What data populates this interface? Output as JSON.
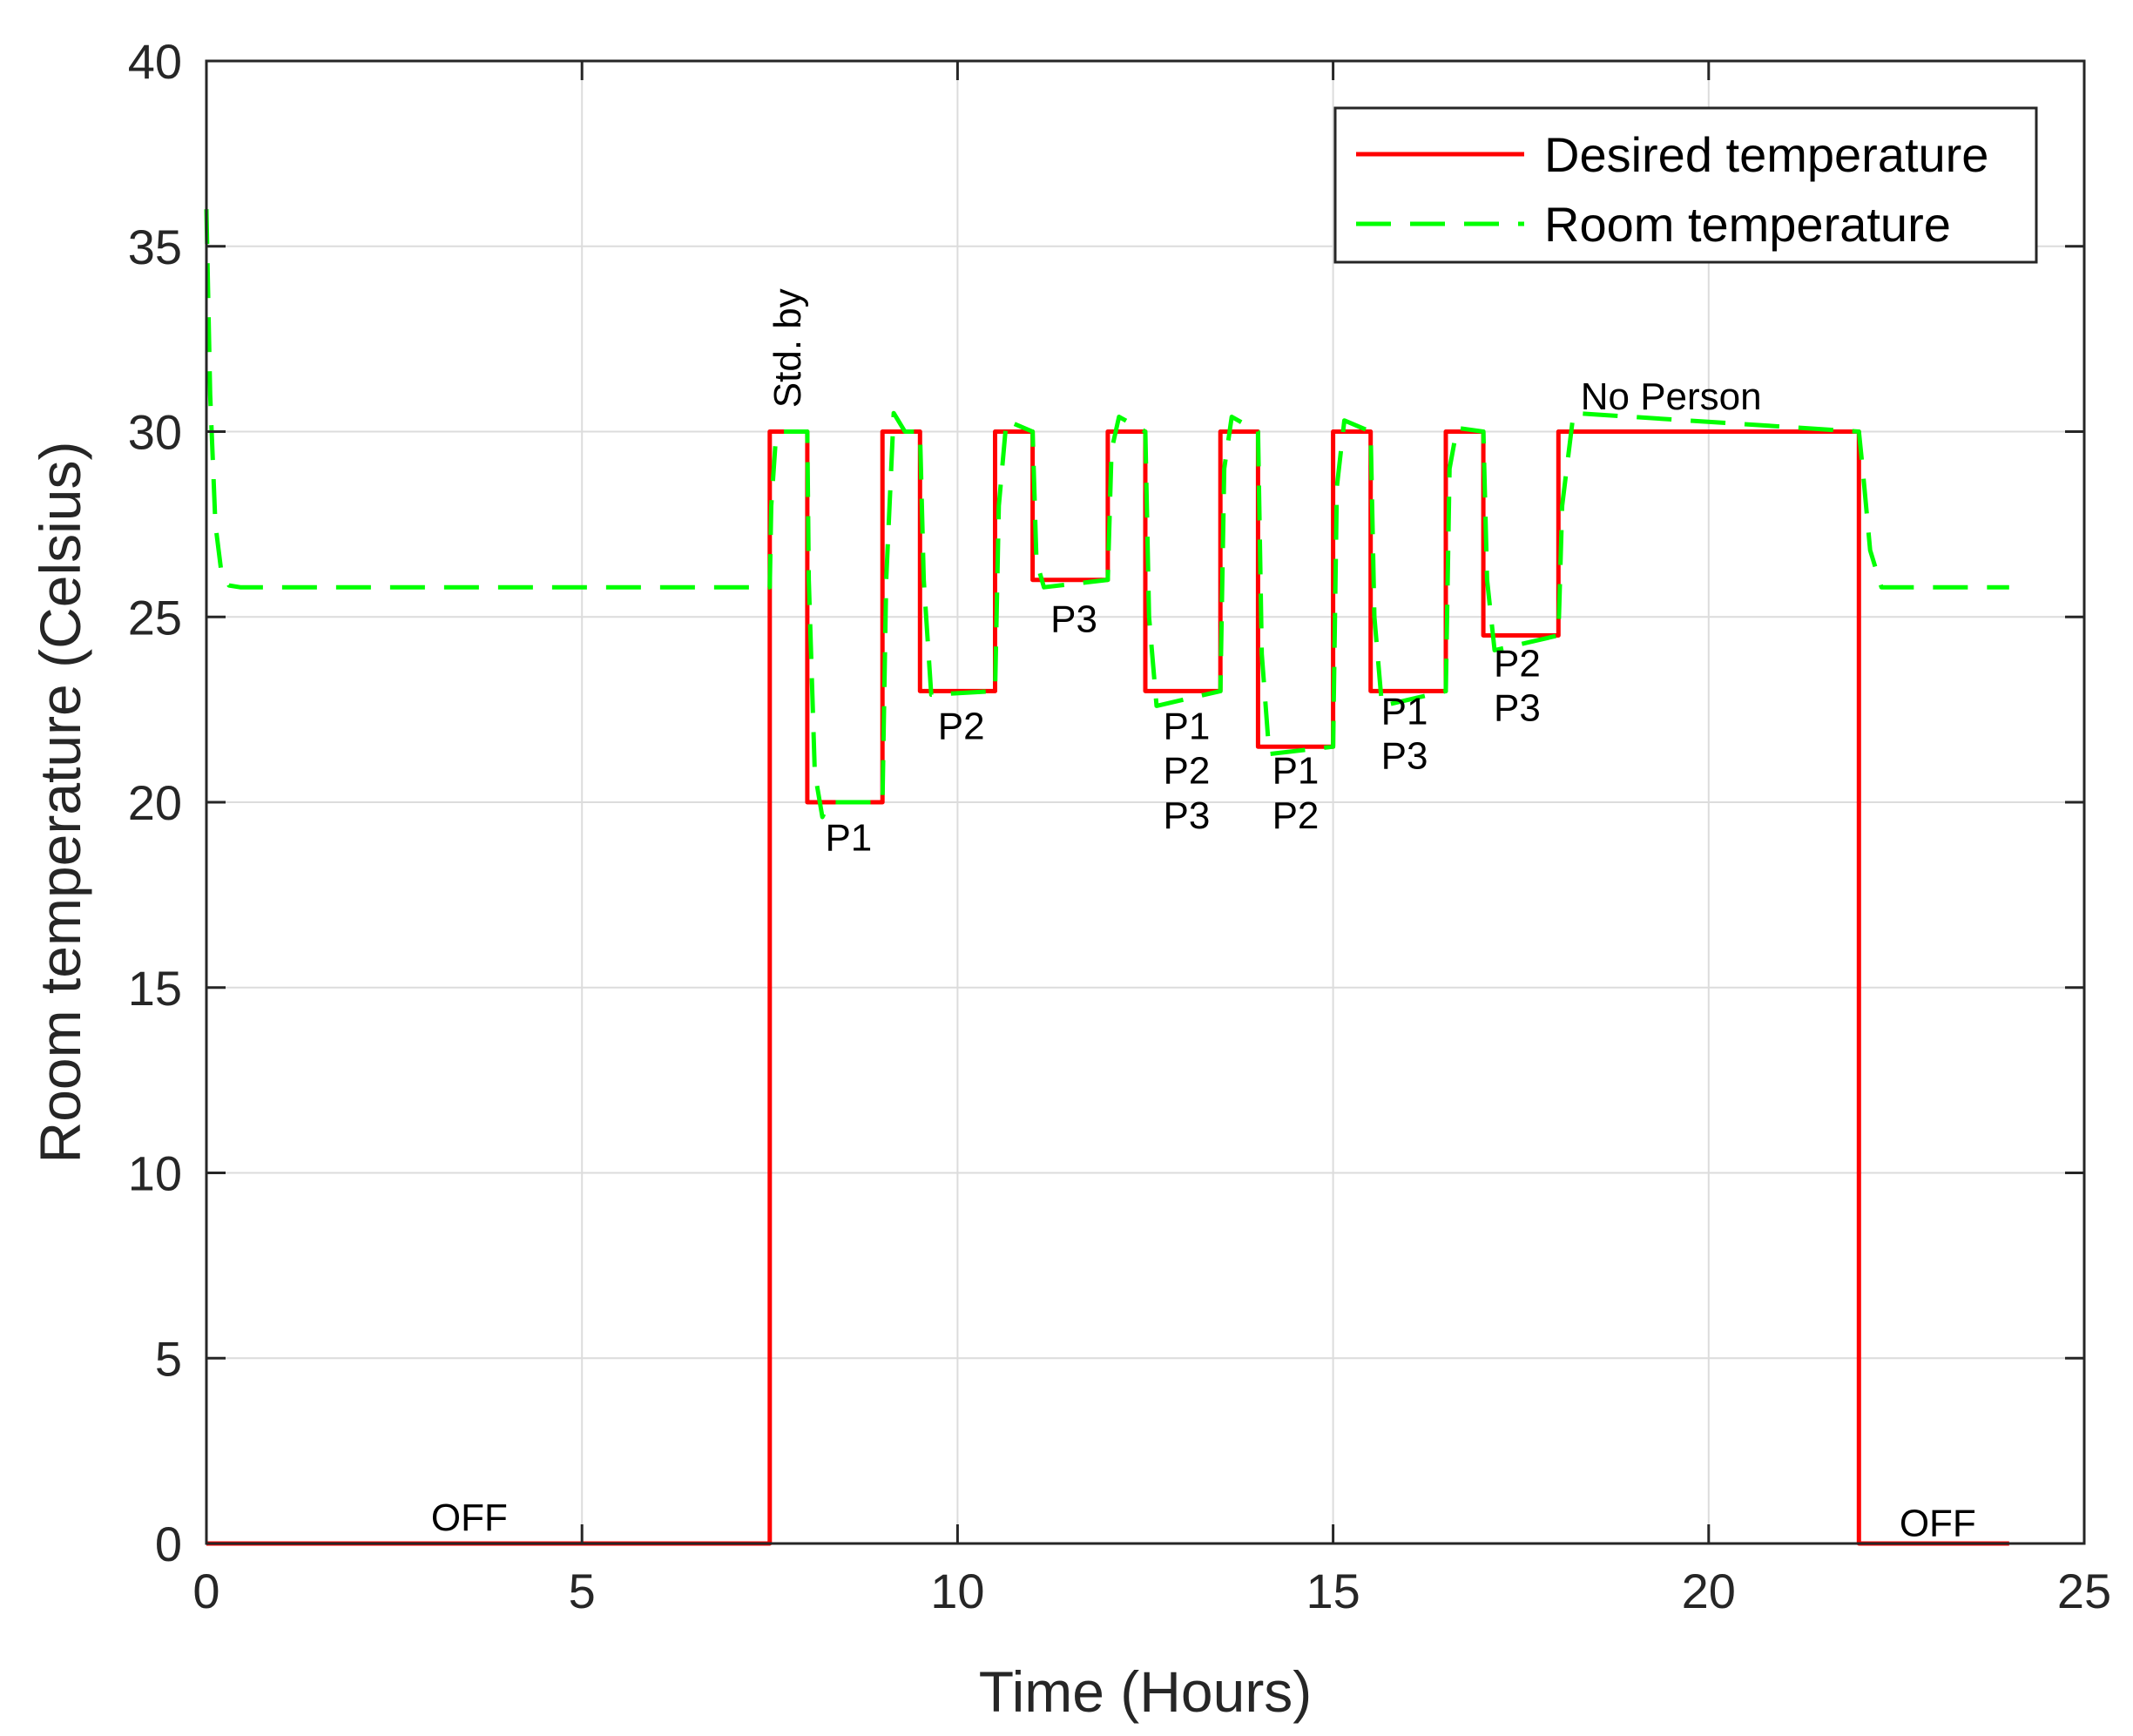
{
  "chart_data": {
    "type": "line",
    "xlabel": "Time (Hours)",
    "ylabel": "Room temperature (Celsius)",
    "xlim": [
      0,
      25
    ],
    "ylim": [
      0,
      40
    ],
    "xticks": [
      0,
      5,
      10,
      15,
      20,
      25
    ],
    "yticks": [
      0,
      5,
      10,
      15,
      20,
      25,
      30,
      35,
      40
    ],
    "grid": true,
    "legend_position": "top-right",
    "series": [
      {
        "name": "Desired temperature",
        "color": "#ff0000",
        "style": "solid",
        "x": [
          0,
          7.5,
          7.5,
          8,
          8,
          9,
          9,
          9.5,
          9.5,
          10.5,
          10.5,
          11,
          11,
          12,
          12,
          12.5,
          12.5,
          13.5,
          13.5,
          14,
          14,
          15,
          15,
          15.5,
          15.5,
          16.5,
          16.5,
          17,
          17,
          18,
          18,
          22,
          22,
          24
        ],
        "values": [
          0,
          0,
          30,
          30,
          20,
          20,
          30,
          30,
          23,
          23,
          30,
          30,
          26,
          26,
          30,
          30,
          23,
          23,
          30,
          30,
          21.5,
          21.5,
          30,
          30,
          23,
          23,
          30,
          30,
          24.5,
          24.5,
          30,
          30,
          0,
          0
        ]
      },
      {
        "name": "Room temperature",
        "color": "#00ff00",
        "style": "dashed",
        "x": [
          0,
          0.05,
          0.12,
          0.2,
          0.3,
          0.45,
          7.5,
          7.52,
          7.58,
          7.65,
          8,
          8.02,
          8.1,
          8.2,
          8.3,
          9,
          9.05,
          9.15,
          9.3,
          9.5,
          9.55,
          9.65,
          10.5,
          10.55,
          10.65,
          11,
          11.05,
          11.15,
          12,
          12.05,
          12.15,
          12.5,
          12.55,
          12.65,
          13.5,
          13.55,
          13.65,
          14,
          14.05,
          14.15,
          15,
          15.05,
          15.15,
          15.5,
          15.55,
          15.65,
          16.5,
          16.55,
          16.65,
          17,
          17.05,
          17.15,
          18,
          18.05,
          18.2,
          22,
          22.05,
          22.15,
          22.3,
          24
        ],
        "values": [
          36,
          31,
          27.5,
          26.2,
          25.85,
          25.8,
          25.8,
          28,
          29.8,
          30,
          30,
          26,
          20.8,
          19.6,
          20,
          20,
          26,
          30.5,
          30,
          30,
          26,
          22.9,
          23,
          28,
          30.3,
          30,
          26.5,
          25.8,
          26,
          29.5,
          30.4,
          30,
          25,
          22.6,
          23,
          29,
          30.4,
          30,
          24,
          21.3,
          21.5,
          28.5,
          30.3,
          30,
          25,
          22.6,
          23,
          29,
          30.1,
          30,
          26,
          24.1,
          24.5,
          28,
          30.5,
          30,
          29,
          26.8,
          25.8,
          25.8
        ]
      }
    ],
    "annotations": [
      {
        "text": "Std. by",
        "x": 7.7,
        "y": 30.5,
        "rotate": true
      },
      {
        "text": "P1",
        "x": 8.55,
        "y": 18.7
      },
      {
        "text": "P2",
        "x": 10.05,
        "y": 21.7
      },
      {
        "text": "P3",
        "x": 11.55,
        "y": 24.6
      },
      {
        "text": "P1",
        "x": 13.05,
        "y": 21.7
      },
      {
        "text": "P2",
        "x": 13.05,
        "y": 20.5
      },
      {
        "text": "P3",
        "x": 13.05,
        "y": 19.3
      },
      {
        "text": "P1",
        "x": 14.5,
        "y": 20.5
      },
      {
        "text": "P2",
        "x": 14.5,
        "y": 19.3
      },
      {
        "text": "P1",
        "x": 15.95,
        "y": 22.1
      },
      {
        "text": "P3",
        "x": 15.95,
        "y": 20.9
      },
      {
        "text": "P2",
        "x": 17.45,
        "y": 23.4
      },
      {
        "text": "P3",
        "x": 17.45,
        "y": 22.2
      },
      {
        "text": "No Person",
        "x": 19.5,
        "y": 30.6
      },
      {
        "text": "OFF",
        "x": 3.5,
        "y": 0.35
      },
      {
        "text": "OFF",
        "x": 23.05,
        "y": 0.2
      }
    ]
  }
}
